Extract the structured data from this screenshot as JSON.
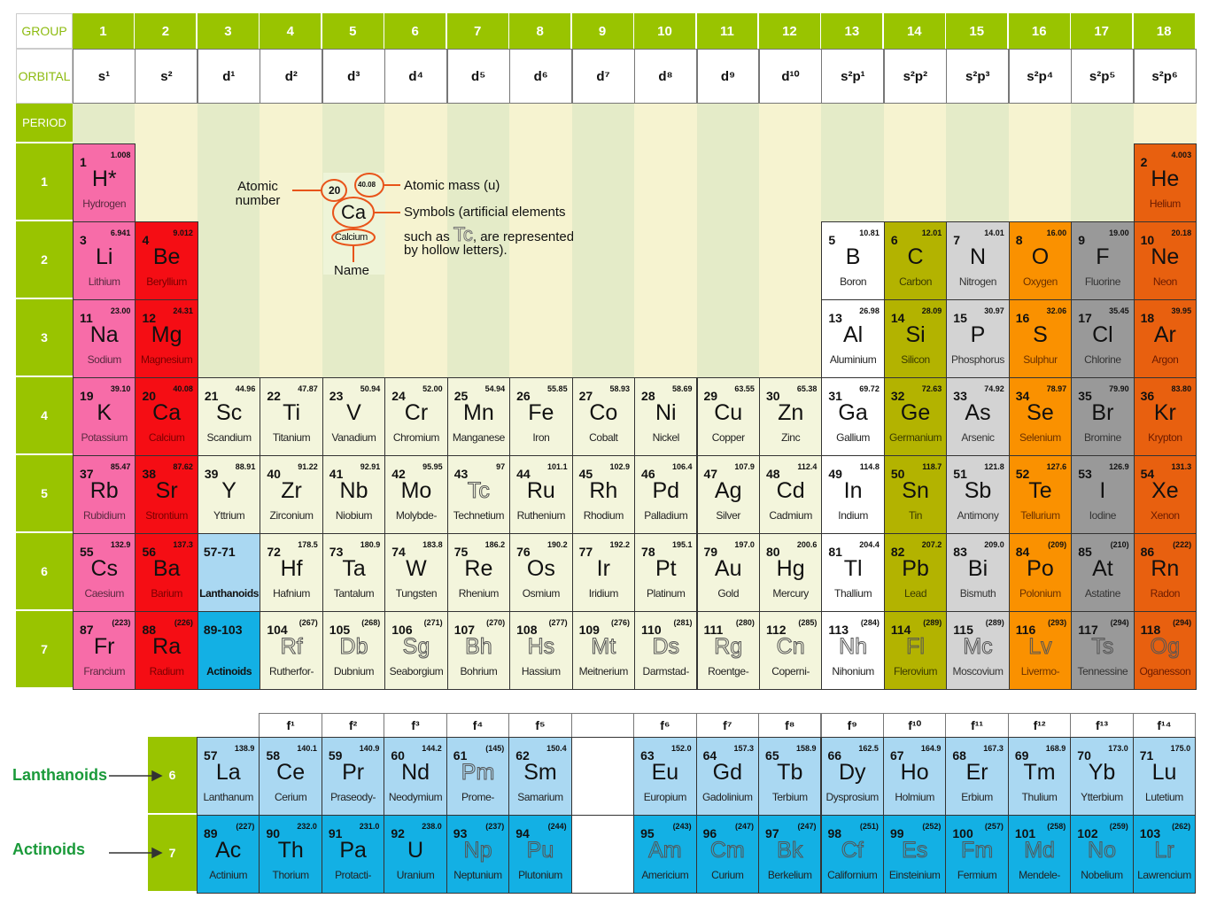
{
  "headers": {
    "group_label": "GROUP",
    "orbital_label": "ORBITAL",
    "period_label": "PERIOD",
    "groups": [
      "1",
      "2",
      "3",
      "4",
      "5",
      "6",
      "7",
      "8",
      "9",
      "10",
      "11",
      "12",
      "13",
      "14",
      "15",
      "16",
      "17",
      "18"
    ],
    "orbitals": [
      "s¹",
      "s²",
      "d¹",
      "d²",
      "d³",
      "d⁴",
      "d⁵",
      "d⁶",
      "d⁷",
      "d⁸",
      "d⁹",
      "d¹⁰",
      "s²p¹",
      "s²p²",
      "s²p³",
      "s²p⁴",
      "s²p⁵",
      "s²p⁶"
    ],
    "periods": [
      "1",
      "2",
      "3",
      "4",
      "5",
      "6",
      "7"
    ]
  },
  "colors": {
    "header_green": "#99c400",
    "alkali": "#f76ca8",
    "alkaline_earth": "#f50d14",
    "transition": "#f3f5dc",
    "post_transition": "#ffffff",
    "group14": "#b3b300",
    "group15": "#d3d3d3",
    "group16": "#fa9100",
    "group17": "#999999",
    "noble": "#e8600f",
    "lanthanoid": "#aad8f2",
    "actinoid": "#13b0e4",
    "legend_orange": "#e8541a",
    "side_label_green": "#1a9a3a"
  },
  "legend": {
    "sample_number": "20",
    "sample_mass": "40.08",
    "sample_symbol": "Ca",
    "sample_name": "Calcium",
    "atomic_number_line1": "Atomic",
    "atomic_number_line2": "number",
    "atomic_mass": "Atomic mass (u)",
    "symbols_line1": "Symbols (artificial elements",
    "symbols_line2_pre": "such as ",
    "symbols_example": "Tc",
    "symbols_line2_post": ", are represented",
    "symbols_line3": "by hollow letters).",
    "name": "Name"
  },
  "elements": [
    {
      "n": 1,
      "s": "H*",
      "name": "Hydrogen",
      "m": "1.008",
      "cat": "alkali",
      "g": 1,
      "p": 1
    },
    {
      "n": 2,
      "s": "He",
      "name": "Helium",
      "m": "4.003",
      "cat": "noble",
      "g": 18,
      "p": 1
    },
    {
      "n": 3,
      "s": "Li",
      "name": "Lithium",
      "m": "6.941",
      "cat": "alkali",
      "g": 1,
      "p": 2
    },
    {
      "n": 4,
      "s": "Be",
      "name": "Beryllium",
      "m": "9.012",
      "cat": "alkaline_earth",
      "g": 2,
      "p": 2
    },
    {
      "n": 5,
      "s": "B",
      "name": "Boron",
      "m": "10.81",
      "cat": "post_transition",
      "g": 13,
      "p": 2
    },
    {
      "n": 6,
      "s": "C",
      "name": "Carbon",
      "m": "12.01",
      "cat": "group14",
      "g": 14,
      "p": 2
    },
    {
      "n": 7,
      "s": "N",
      "name": "Nitrogen",
      "m": "14.01",
      "cat": "group15",
      "g": 15,
      "p": 2
    },
    {
      "n": 8,
      "s": "O",
      "name": "Oxygen",
      "m": "16.00",
      "cat": "group16",
      "g": 16,
      "p": 2
    },
    {
      "n": 9,
      "s": "F",
      "name": "Fluorine",
      "m": "19.00",
      "cat": "group17",
      "g": 17,
      "p": 2
    },
    {
      "n": 10,
      "s": "Ne",
      "name": "Neon",
      "m": "20.18",
      "cat": "noble",
      "g": 18,
      "p": 2
    },
    {
      "n": 11,
      "s": "Na",
      "name": "Sodium",
      "m": "23.00",
      "cat": "alkali",
      "g": 1,
      "p": 3
    },
    {
      "n": 12,
      "s": "Mg",
      "name": "Magnesium",
      "m": "24.31",
      "cat": "alkaline_earth",
      "g": 2,
      "p": 3
    },
    {
      "n": 13,
      "s": "Al",
      "name": "Aluminium",
      "m": "26.98",
      "cat": "post_transition",
      "g": 13,
      "p": 3
    },
    {
      "n": 14,
      "s": "Si",
      "name": "Silicon",
      "m": "28.09",
      "cat": "group14",
      "g": 14,
      "p": 3
    },
    {
      "n": 15,
      "s": "P",
      "name": "Phosphorus",
      "m": "30.97",
      "cat": "group15",
      "g": 15,
      "p": 3
    },
    {
      "n": 16,
      "s": "S",
      "name": "Sulphur",
      "m": "32.06",
      "cat": "group16",
      "g": 16,
      "p": 3
    },
    {
      "n": 17,
      "s": "Cl",
      "name": "Chlorine",
      "m": "35.45",
      "cat": "group17",
      "g": 17,
      "p": 3
    },
    {
      "n": 18,
      "s": "Ar",
      "name": "Argon",
      "m": "39.95",
      "cat": "noble",
      "g": 18,
      "p": 3
    },
    {
      "n": 19,
      "s": "K",
      "name": "Potassium",
      "m": "39.10",
      "cat": "alkali",
      "g": 1,
      "p": 4
    },
    {
      "n": 20,
      "s": "Ca",
      "name": "Calcium",
      "m": "40.08",
      "cat": "alkaline_earth",
      "g": 2,
      "p": 4
    },
    {
      "n": 21,
      "s": "Sc",
      "name": "Scandium",
      "m": "44.96",
      "cat": "transition",
      "g": 3,
      "p": 4
    },
    {
      "n": 22,
      "s": "Ti",
      "name": "Titanium",
      "m": "47.87",
      "cat": "transition",
      "g": 4,
      "p": 4
    },
    {
      "n": 23,
      "s": "V",
      "name": "Vanadium",
      "m": "50.94",
      "cat": "transition",
      "g": 5,
      "p": 4
    },
    {
      "n": 24,
      "s": "Cr",
      "name": "Chromium",
      "m": "52.00",
      "cat": "transition",
      "g": 6,
      "p": 4
    },
    {
      "n": 25,
      "s": "Mn",
      "name": "Manganese",
      "m": "54.94",
      "cat": "transition",
      "g": 7,
      "p": 4
    },
    {
      "n": 26,
      "s": "Fe",
      "name": "Iron",
      "m": "55.85",
      "cat": "transition",
      "g": 8,
      "p": 4
    },
    {
      "n": 27,
      "s": "Co",
      "name": "Cobalt",
      "m": "58.93",
      "cat": "transition",
      "g": 9,
      "p": 4
    },
    {
      "n": 28,
      "s": "Ni",
      "name": "Nickel",
      "m": "58.69",
      "cat": "transition",
      "g": 10,
      "p": 4
    },
    {
      "n": 29,
      "s": "Cu",
      "name": "Copper",
      "m": "63.55",
      "cat": "transition",
      "g": 11,
      "p": 4
    },
    {
      "n": 30,
      "s": "Zn",
      "name": "Zinc",
      "m": "65.38",
      "cat": "transition",
      "g": 12,
      "p": 4
    },
    {
      "n": 31,
      "s": "Ga",
      "name": "Gallium",
      "m": "69.72",
      "cat": "post_transition",
      "g": 13,
      "p": 4
    },
    {
      "n": 32,
      "s": "Ge",
      "name": "Germanium",
      "m": "72.63",
      "cat": "group14",
      "g": 14,
      "p": 4
    },
    {
      "n": 33,
      "s": "As",
      "name": "Arsenic",
      "m": "74.92",
      "cat": "group15",
      "g": 15,
      "p": 4
    },
    {
      "n": 34,
      "s": "Se",
      "name": "Selenium",
      "m": "78.97",
      "cat": "group16",
      "g": 16,
      "p": 4
    },
    {
      "n": 35,
      "s": "Br",
      "name": "Bromine",
      "m": "79.90",
      "cat": "group17",
      "g": 17,
      "p": 4
    },
    {
      "n": 36,
      "s": "Kr",
      "name": "Krypton",
      "m": "83.80",
      "cat": "noble",
      "g": 18,
      "p": 4
    },
    {
      "n": 37,
      "s": "Rb",
      "name": "Rubidium",
      "m": "85.47",
      "cat": "alkali",
      "g": 1,
      "p": 5
    },
    {
      "n": 38,
      "s": "Sr",
      "name": "Strontium",
      "m": "87.62",
      "cat": "alkaline_earth",
      "g": 2,
      "p": 5
    },
    {
      "n": 39,
      "s": "Y",
      "name": "Yttrium",
      "m": "88.91",
      "cat": "transition",
      "g": 3,
      "p": 5
    },
    {
      "n": 40,
      "s": "Zr",
      "name": "Zirconium",
      "m": "91.22",
      "cat": "transition",
      "g": 4,
      "p": 5
    },
    {
      "n": 41,
      "s": "Nb",
      "name": "Niobium",
      "m": "92.91",
      "cat": "transition",
      "g": 5,
      "p": 5
    },
    {
      "n": 42,
      "s": "Mo",
      "name": "Molybde-",
      "m": "95.95",
      "cat": "transition",
      "g": 6,
      "p": 5
    },
    {
      "n": 43,
      "s": "Tc",
      "name": "Technetium",
      "m": "97",
      "cat": "transition",
      "g": 7,
      "p": 5,
      "synthetic": true
    },
    {
      "n": 44,
      "s": "Ru",
      "name": "Ruthenium",
      "m": "101.1",
      "cat": "transition",
      "g": 8,
      "p": 5
    },
    {
      "n": 45,
      "s": "Rh",
      "name": "Rhodium",
      "m": "102.9",
      "cat": "transition",
      "g": 9,
      "p": 5
    },
    {
      "n": 46,
      "s": "Pd",
      "name": "Palladium",
      "m": "106.4",
      "cat": "transition",
      "g": 10,
      "p": 5
    },
    {
      "n": 47,
      "s": "Ag",
      "name": "Silver",
      "m": "107.9",
      "cat": "transition",
      "g": 11,
      "p": 5
    },
    {
      "n": 48,
      "s": "Cd",
      "name": "Cadmium",
      "m": "112.4",
      "cat": "transition",
      "g": 12,
      "p": 5
    },
    {
      "n": 49,
      "s": "In",
      "name": "Indium",
      "m": "114.8",
      "cat": "post_transition",
      "g": 13,
      "p": 5
    },
    {
      "n": 50,
      "s": "Sn",
      "name": "Tin",
      "m": "118.7",
      "cat": "group14",
      "g": 14,
      "p": 5
    },
    {
      "n": 51,
      "s": "Sb",
      "name": "Antimony",
      "m": "121.8",
      "cat": "group15",
      "g": 15,
      "p": 5
    },
    {
      "n": 52,
      "s": "Te",
      "name": "Tellurium",
      "m": "127.6",
      "cat": "group16",
      "g": 16,
      "p": 5
    },
    {
      "n": 53,
      "s": "I",
      "name": "Iodine",
      "m": "126.9",
      "cat": "group17",
      "g": 17,
      "p": 5
    },
    {
      "n": 54,
      "s": "Xe",
      "name": "Xenon",
      "m": "131.3",
      "cat": "noble",
      "g": 18,
      "p": 5
    },
    {
      "n": 55,
      "s": "Cs",
      "name": "Caesium",
      "m": "132.9",
      "cat": "alkali",
      "g": 1,
      "p": 6
    },
    {
      "n": 56,
      "s": "Ba",
      "name": "Barium",
      "m": "137.3",
      "cat": "alkaline_earth",
      "g": 2,
      "p": 6
    },
    {
      "n": 72,
      "s": "Hf",
      "name": "Hafnium",
      "m": "178.5",
      "cat": "transition",
      "g": 4,
      "p": 6
    },
    {
      "n": 73,
      "s": "Ta",
      "name": "Tantalum",
      "m": "180.9",
      "cat": "transition",
      "g": 5,
      "p": 6
    },
    {
      "n": 74,
      "s": "W",
      "name": "Tungsten",
      "m": "183.8",
      "cat": "transition",
      "g": 6,
      "p": 6
    },
    {
      "n": 75,
      "s": "Re",
      "name": "Rhenium",
      "m": "186.2",
      "cat": "transition",
      "g": 7,
      "p": 6
    },
    {
      "n": 76,
      "s": "Os",
      "name": "Osmium",
      "m": "190.2",
      "cat": "transition",
      "g": 8,
      "p": 6
    },
    {
      "n": 77,
      "s": "Ir",
      "name": "Iridium",
      "m": "192.2",
      "cat": "transition",
      "g": 9,
      "p": 6
    },
    {
      "n": 78,
      "s": "Pt",
      "name": "Platinum",
      "m": "195.1",
      "cat": "transition",
      "g": 10,
      "p": 6
    },
    {
      "n": 79,
      "s": "Au",
      "name": "Gold",
      "m": "197.0",
      "cat": "transition",
      "g": 11,
      "p": 6
    },
    {
      "n": 80,
      "s": "Hg",
      "name": "Mercury",
      "m": "200.6",
      "cat": "transition",
      "g": 12,
      "p": 6
    },
    {
      "n": 81,
      "s": "Tl",
      "name": "Thallium",
      "m": "204.4",
      "cat": "post_transition",
      "g": 13,
      "p": 6
    },
    {
      "n": 82,
      "s": "Pb",
      "name": "Lead",
      "m": "207.2",
      "cat": "group14",
      "g": 14,
      "p": 6
    },
    {
      "n": 83,
      "s": "Bi",
      "name": "Bismuth",
      "m": "209.0",
      "cat": "group15",
      "g": 15,
      "p": 6
    },
    {
      "n": 84,
      "s": "Po",
      "name": "Polonium",
      "m": "(209)",
      "cat": "group16",
      "g": 16,
      "p": 6
    },
    {
      "n": 85,
      "s": "At",
      "name": "Astatine",
      "m": "(210)",
      "cat": "group17",
      "g": 17,
      "p": 6
    },
    {
      "n": 86,
      "s": "Rn",
      "name": "Radon",
      "m": "(222)",
      "cat": "noble",
      "g": 18,
      "p": 6
    },
    {
      "n": 87,
      "s": "Fr",
      "name": "Francium",
      "m": "(223)",
      "cat": "alkali",
      "g": 1,
      "p": 7
    },
    {
      "n": 88,
      "s": "Ra",
      "name": "Radium",
      "m": "(226)",
      "cat": "alkaline_earth",
      "g": 2,
      "p": 7
    },
    {
      "n": 104,
      "s": "Rf",
      "name": "Rutherfor-",
      "m": "(267)",
      "cat": "transition",
      "g": 4,
      "p": 7,
      "synthetic": true
    },
    {
      "n": 105,
      "s": "Db",
      "name": "Dubnium",
      "m": "(268)",
      "cat": "transition",
      "g": 5,
      "p": 7,
      "synthetic": true
    },
    {
      "n": 106,
      "s": "Sg",
      "name": "Seaborgium",
      "m": "(271)",
      "cat": "transition",
      "g": 6,
      "p": 7,
      "synthetic": true
    },
    {
      "n": 107,
      "s": "Bh",
      "name": "Bohrium",
      "m": "(270)",
      "cat": "transition",
      "g": 7,
      "p": 7,
      "synthetic": true
    },
    {
      "n": 108,
      "s": "Hs",
      "name": "Hassium",
      "m": "(277)",
      "cat": "transition",
      "g": 8,
      "p": 7,
      "synthetic": true
    },
    {
      "n": 109,
      "s": "Mt",
      "name": "Meitnerium",
      "m": "(276)",
      "cat": "transition",
      "g": 9,
      "p": 7,
      "synthetic": true
    },
    {
      "n": 110,
      "s": "Ds",
      "name": "Darmstad-",
      "m": "(281)",
      "cat": "transition",
      "g": 10,
      "p": 7,
      "synthetic": true
    },
    {
      "n": 111,
      "s": "Rg",
      "name": "Roentge-",
      "m": "(280)",
      "cat": "transition",
      "g": 11,
      "p": 7,
      "synthetic": true
    },
    {
      "n": 112,
      "s": "Cn",
      "name": "Coperni-",
      "m": "(285)",
      "cat": "transition",
      "g": 12,
      "p": 7,
      "synthetic": true
    },
    {
      "n": 113,
      "s": "Nh",
      "name": "Nihonium",
      "m": "(284)",
      "cat": "post_transition",
      "g": 13,
      "p": 7,
      "synthetic": true
    },
    {
      "n": 114,
      "s": "Fl",
      "name": "Flerovium",
      "m": "(289)",
      "cat": "group14",
      "g": 14,
      "p": 7,
      "synthetic": true
    },
    {
      "n": 115,
      "s": "Mc",
      "name": "Moscovium",
      "m": "(289)",
      "cat": "group15",
      "g": 15,
      "p": 7,
      "synthetic": true
    },
    {
      "n": 116,
      "s": "Lv",
      "name": "Livermo-",
      "m": "(293)",
      "cat": "group16",
      "g": 16,
      "p": 7,
      "synthetic": true
    },
    {
      "n": 117,
      "s": "Ts",
      "name": "Tennessine",
      "m": "(294)",
      "cat": "group17",
      "g": 17,
      "p": 7,
      "synthetic": true
    },
    {
      "n": 118,
      "s": "Og",
      "name": "Oganesson",
      "m": "(294)",
      "cat": "noble",
      "g": 18,
      "p": 7,
      "synthetic": true
    }
  ],
  "placeholders": [
    {
      "label": "57-71",
      "caption": "Lanthanoids",
      "cat": "lanthanoid",
      "g": 3,
      "p": 6
    },
    {
      "label": "89-103",
      "caption": "Actinoids",
      "cat": "actinoid",
      "g": 3,
      "p": 7
    }
  ],
  "f_block": {
    "headers": [
      "f¹",
      "f²",
      "f³",
      "f⁴",
      "f⁵",
      "",
      "f⁶",
      "f⁷",
      "f⁸",
      "f⁹",
      "f¹⁰",
      "f¹¹",
      "f¹²",
      "f¹³",
      "f¹⁴"
    ],
    "lanthanoids_label": "Lanthanoids",
    "actinoids_label": "Actinoids",
    "row_periods": [
      "6",
      "7"
    ],
    "lanthanoids": [
      {
        "n": 57,
        "s": "La",
        "name": "Lanthanum",
        "m": "138.9"
      },
      {
        "n": 58,
        "s": "Ce",
        "name": "Cerium",
        "m": "140.1"
      },
      {
        "n": 59,
        "s": "Pr",
        "name": "Praseody-",
        "m": "140.9"
      },
      {
        "n": 60,
        "s": "Nd",
        "name": "Neodymium",
        "m": "144.2"
      },
      {
        "n": 61,
        "s": "Pm",
        "name": "Prome-",
        "m": "(145)",
        "synthetic": true
      },
      {
        "n": 62,
        "s": "Sm",
        "name": "Samarium",
        "m": "150.4"
      },
      {
        "n": 63,
        "s": "Eu",
        "name": "Europium",
        "m": "152.0"
      },
      {
        "n": 64,
        "s": "Gd",
        "name": "Gadolinium",
        "m": "157.3"
      },
      {
        "n": 65,
        "s": "Tb",
        "name": "Terbium",
        "m": "158.9"
      },
      {
        "n": 66,
        "s": "Dy",
        "name": "Dysprosium",
        "m": "162.5"
      },
      {
        "n": 67,
        "s": "Ho",
        "name": "Holmium",
        "m": "164.9"
      },
      {
        "n": 68,
        "s": "Er",
        "name": "Erbium",
        "m": "167.3"
      },
      {
        "n": 69,
        "s": "Tm",
        "name": "Thulium",
        "m": "168.9"
      },
      {
        "n": 70,
        "s": "Yb",
        "name": "Ytterbium",
        "m": "173.0"
      },
      {
        "n": 71,
        "s": "Lu",
        "name": "Lutetium",
        "m": "175.0"
      }
    ],
    "actinoids": [
      {
        "n": 89,
        "s": "Ac",
        "name": "Actinium",
        "m": "(227)"
      },
      {
        "n": 90,
        "s": "Th",
        "name": "Thorium",
        "m": "232.0"
      },
      {
        "n": 91,
        "s": "Pa",
        "name": "Protacti-",
        "m": "231.0"
      },
      {
        "n": 92,
        "s": "U",
        "name": "Uranium",
        "m": "238.0"
      },
      {
        "n": 93,
        "s": "Np",
        "name": "Neptunium",
        "m": "(237)",
        "synthetic": true
      },
      {
        "n": 94,
        "s": "Pu",
        "name": "Plutonium",
        "m": "(244)",
        "synthetic": true
      },
      {
        "n": 95,
        "s": "Am",
        "name": "Americium",
        "m": "(243)",
        "synthetic": true
      },
      {
        "n": 96,
        "s": "Cm",
        "name": "Curium",
        "m": "(247)",
        "synthetic": true
      },
      {
        "n": 97,
        "s": "Bk",
        "name": "Berkelium",
        "m": "(247)",
        "synthetic": true
      },
      {
        "n": 98,
        "s": "Cf",
        "name": "Californium",
        "m": "(251)",
        "synthetic": true
      },
      {
        "n": 99,
        "s": "Es",
        "name": "Einsteinium",
        "m": "(252)",
        "synthetic": true
      },
      {
        "n": 100,
        "s": "Fm",
        "name": "Fermium",
        "m": "(257)",
        "synthetic": true
      },
      {
        "n": 101,
        "s": "Md",
        "name": "Mendele-",
        "m": "(258)",
        "synthetic": true
      },
      {
        "n": 102,
        "s": "No",
        "name": "Nobelium",
        "m": "(259)",
        "synthetic": true
      },
      {
        "n": 103,
        "s": "Lr",
        "name": "Lawrencium",
        "m": "(262)",
        "synthetic": true
      }
    ]
  }
}
